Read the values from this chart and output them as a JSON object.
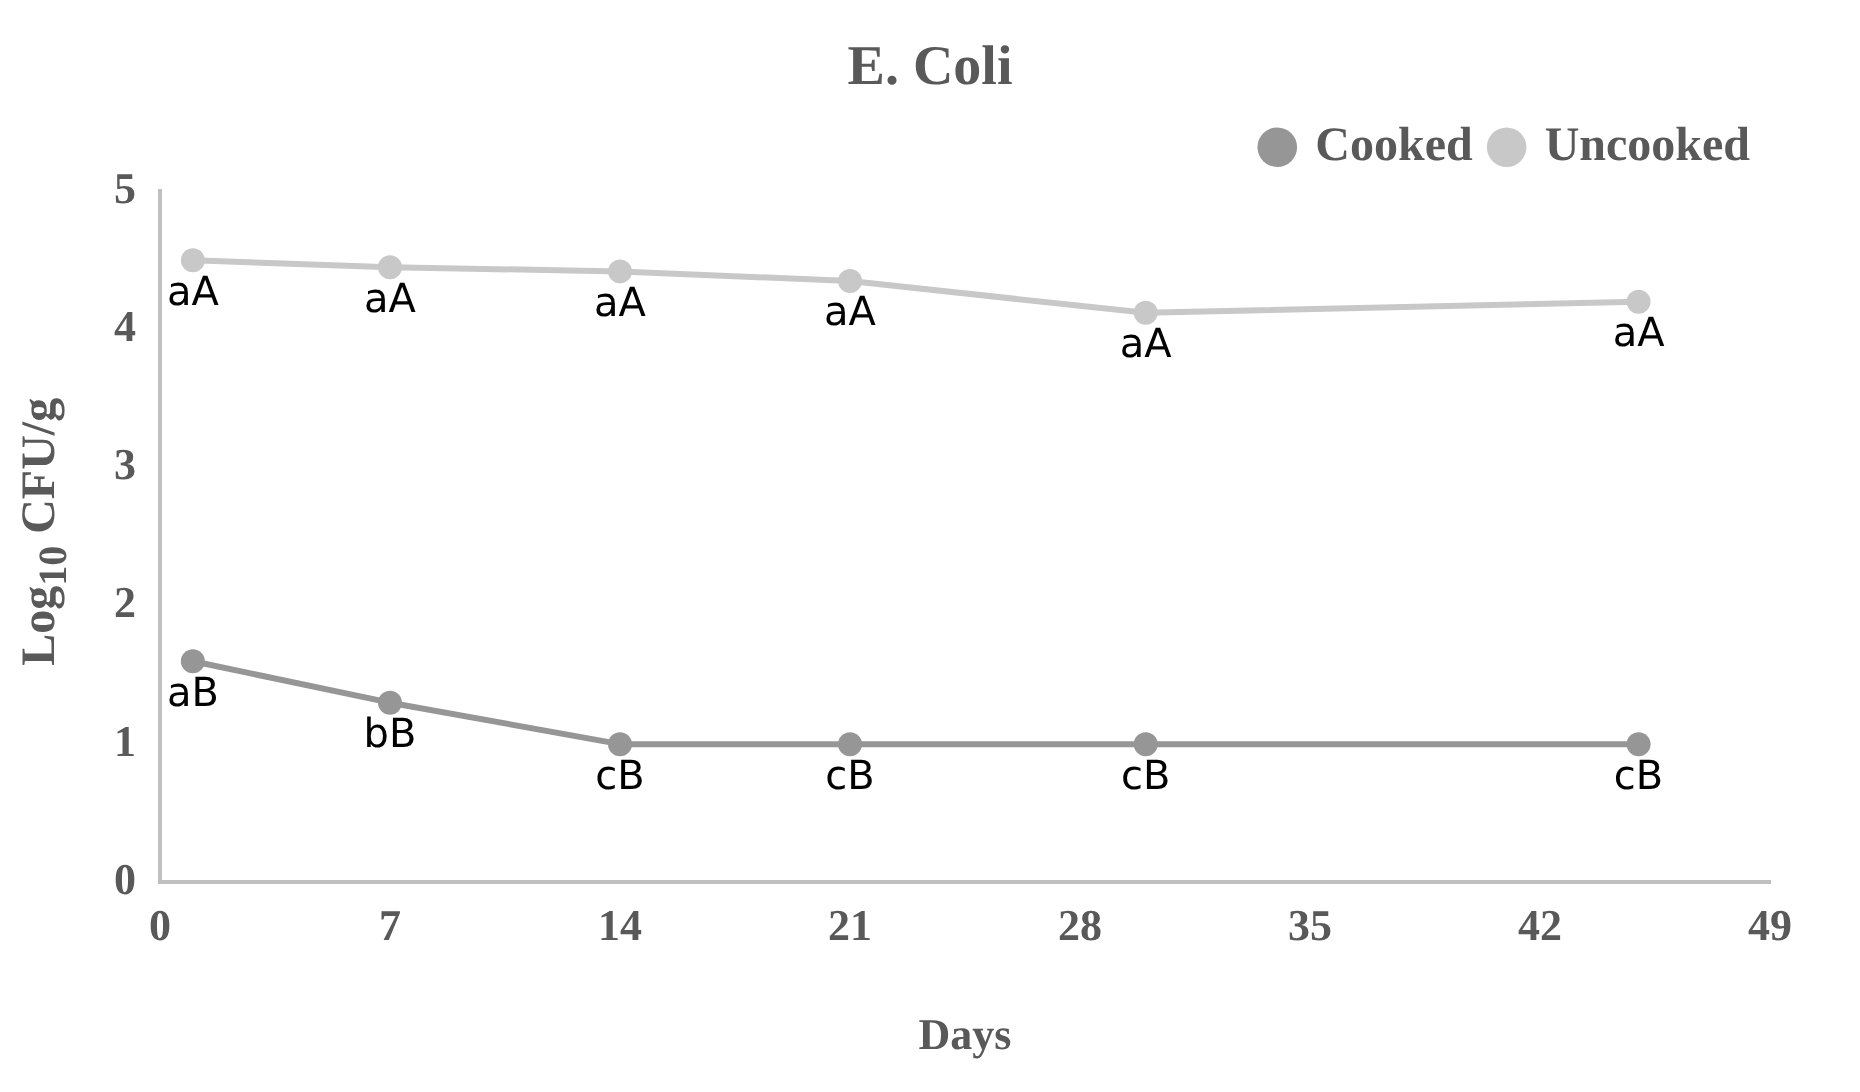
{
  "chart_data": {
    "type": "line",
    "title": "E. Coli",
    "xlabel": "Days",
    "ylabel": "Log$_{10}$ CFU/g",
    "x": [
      1,
      7,
      14,
      21,
      30,
      45
    ],
    "series": [
      {
        "name": "Cooked",
        "color": "#969696",
        "values": [
          1.6,
          1.3,
          1.0,
          1.0,
          1.0,
          1.0
        ],
        "value_labels": [
          "aB",
          "bB",
          "cB",
          "cB",
          "cB",
          "cB"
        ]
      },
      {
        "name": "Uncooked",
        "color": "#c8c8c8",
        "values": [
          4.5,
          4.45,
          4.42,
          4.35,
          4.12,
          4.2
        ],
        "value_labels": [
          "aA",
          "aA",
          "aA",
          "aA",
          "aA",
          "aA"
        ]
      }
    ],
    "xlim": [
      0,
      49
    ],
    "xticks": [
      0,
      7,
      14,
      21,
      28,
      35,
      42,
      49
    ],
    "ylim": [
      0,
      5
    ],
    "yticks": [
      0,
      1,
      2,
      3,
      4,
      5
    ],
    "grid": false,
    "legend": "top right",
    "marker": "circle",
    "line_style": "solid"
  }
}
